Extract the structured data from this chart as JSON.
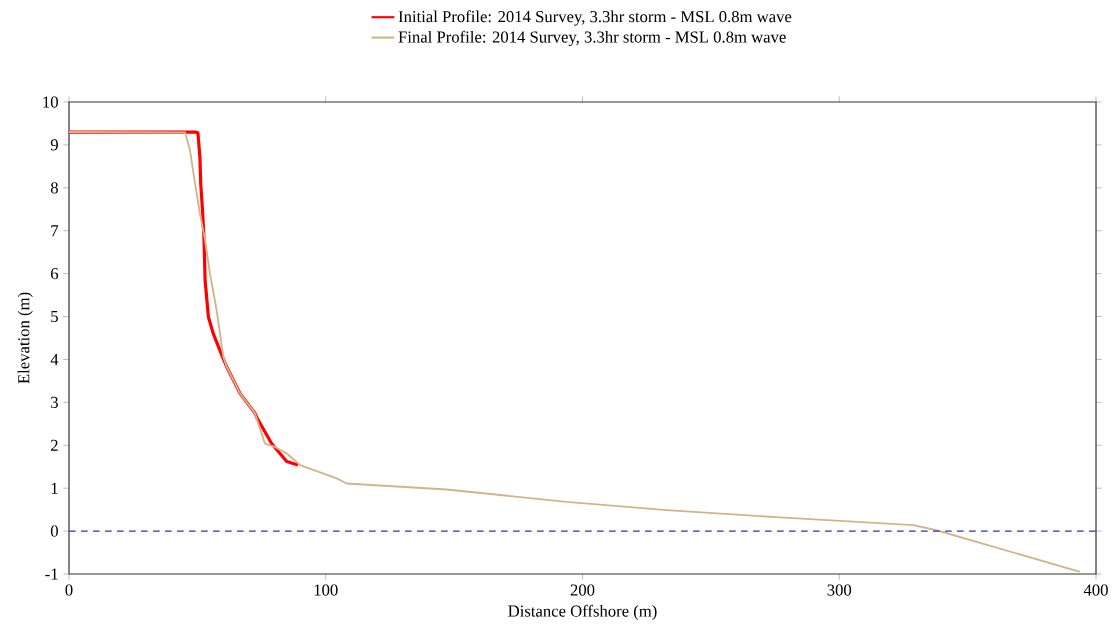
{
  "chart_data": {
    "type": "line",
    "xlabel": "Distance Offshore (m)",
    "ylabel": "Elevation (m)",
    "xlim": [
      0,
      400
    ],
    "ylim": [
      -1,
      10
    ],
    "xticks": [
      0,
      100,
      200,
      300,
      400
    ],
    "yticks": [
      -1,
      0,
      1,
      2,
      3,
      4,
      5,
      6,
      7,
      8,
      9,
      10
    ],
    "grid": false,
    "legend": "top",
    "marker": "none",
    "line_style": "solid",
    "ref_lines": [
      {
        "axis": "y",
        "value": 0,
        "color": "#3333aa",
        "line_style": "dashed"
      }
    ],
    "series": [
      {
        "name": "Initial Profile: 2014 Survey, 3.3hr storm - MSL 0.8m wave",
        "color": "#ff0000",
        "x": [
          0,
          49.1,
          50.2,
          51,
          51.3,
          52,
          52.6,
          53,
          54.3,
          56.2,
          59.5,
          61.4,
          66.6,
          72.4,
          73.3,
          78.9,
          84.8,
          89.2
        ],
        "values": [
          9.3,
          9.3,
          9.28,
          8.7,
          8.1,
          7.48,
          6.78,
          5.85,
          4.99,
          4.6,
          4.1,
          3.83,
          3.21,
          2.75,
          2.63,
          2.04,
          1.62,
          1.54
        ]
      },
      {
        "name": "Final Profile: 2014 Survey, 3.3hr storm - MSL 0.8m wave",
        "color": "#d2b48c",
        "x": [
          0,
          45.2,
          47.1,
          49.1,
          51,
          53,
          54.9,
          57.5,
          60.1,
          61.4,
          66.6,
          72.4,
          76.3,
          80.2,
          84.8,
          90,
          104.3,
          108.1,
          147.1,
          193.8,
          232.8,
          276.9,
          328.8,
          337.9,
          393.8
        ],
        "values": [
          9.3,
          9.29,
          8.88,
          8.1,
          7.4,
          6.78,
          6.0,
          5.15,
          4.06,
          3.83,
          3.21,
          2.75,
          2.04,
          1.96,
          1.81,
          1.54,
          1.23,
          1.11,
          0.97,
          0.68,
          0.49,
          0.32,
          0.14,
          0.02,
          -0.95
        ]
      }
    ]
  }
}
